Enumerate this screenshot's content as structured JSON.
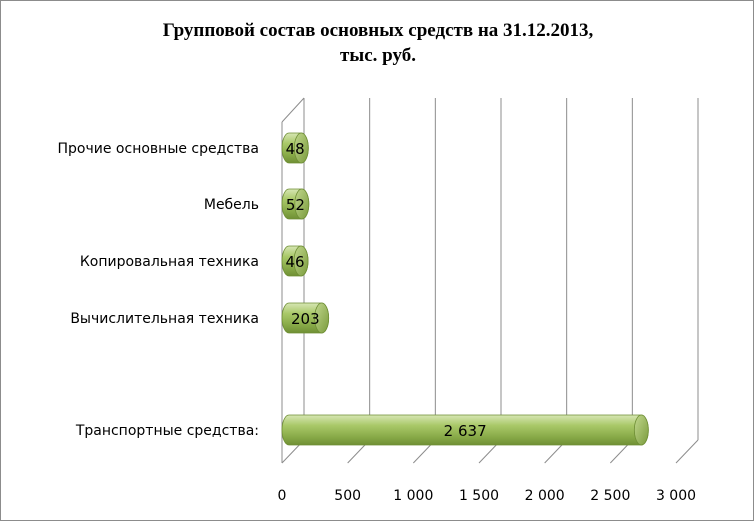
{
  "chart_data": {
    "type": "bar",
    "orientation": "horizontal",
    "style": "3d-cylinder",
    "title_lines": [
      "Групповой состав основных средств на 31.12.2013,",
      "тыс. руб."
    ],
    "categories": [
      "Прочие основные средства",
      "Мебель",
      "Копировальная техника",
      "Вычислительная техника",
      "Транспортные средства:"
    ],
    "values": [
      48,
      52,
      46,
      203,
      2637
    ],
    "data_labels": [
      "48",
      "52",
      "46",
      "203",
      "2 637"
    ],
    "xlim": [
      0,
      3000
    ],
    "x_ticks": [
      0,
      500,
      1000,
      1500,
      2000,
      2500,
      3000
    ],
    "x_tick_labels": [
      "0",
      "500",
      "1 000",
      "1 500",
      "2 000",
      "2 500",
      "3 000"
    ],
    "grid": true,
    "bar_color": "#9bbb59"
  }
}
